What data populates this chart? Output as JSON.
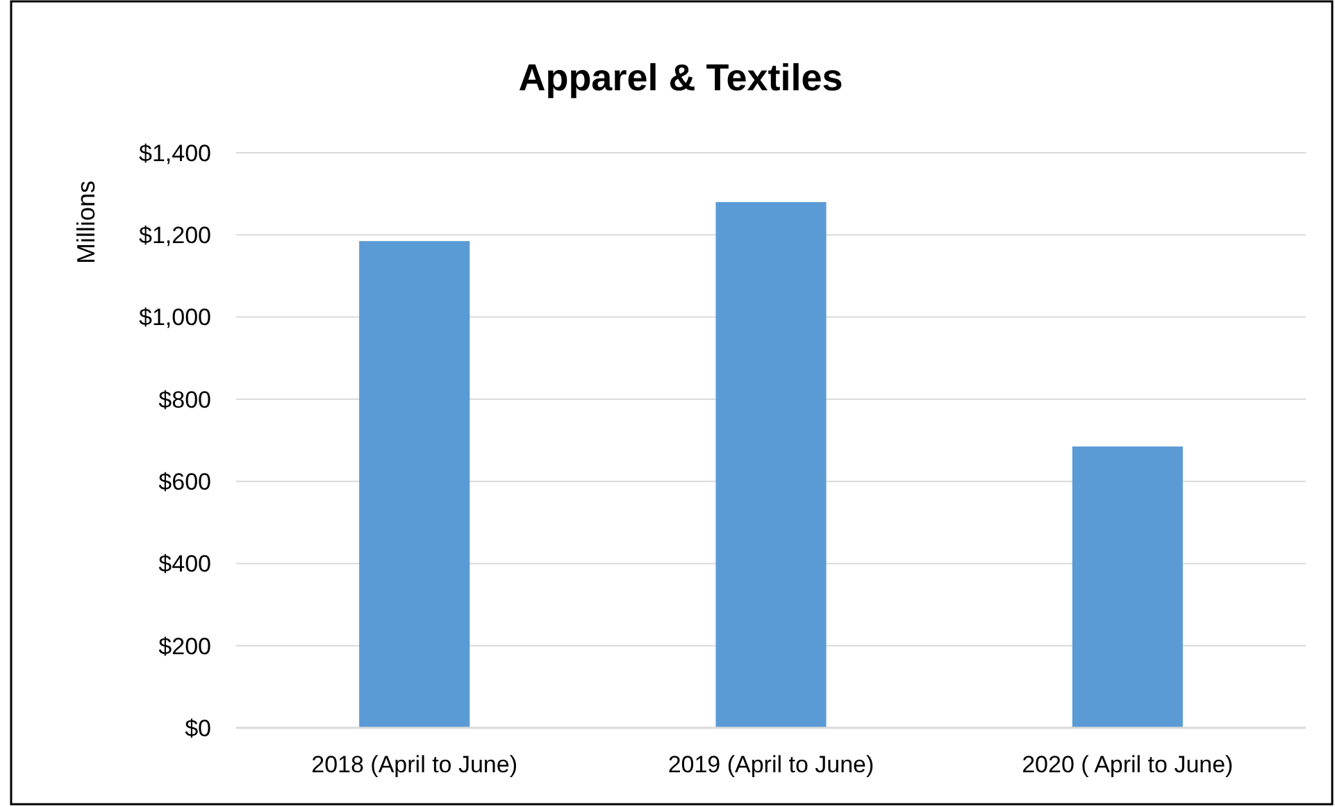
{
  "chart_data": {
    "type": "bar",
    "title": "Apparel & Textiles",
    "ylabel": "Millions",
    "categories": [
      "2018 (April to June)",
      "2019 (April to June)",
      "2020 ( April to June)"
    ],
    "values": [
      1185,
      1280,
      685
    ],
    "color": "#5b9bd5",
    "ylim": [
      0,
      1400
    ],
    "yticks": [
      {
        "value": 0,
        "label": "$0"
      },
      {
        "value": 200,
        "label": "$200"
      },
      {
        "value": 400,
        "label": "$400"
      },
      {
        "value": 600,
        "label": "$600"
      },
      {
        "value": 800,
        "label": "$800"
      },
      {
        "value": 1000,
        "label": "$1,000"
      },
      {
        "value": 1200,
        "label": "$1,200"
      },
      {
        "value": 1400,
        "label": "$1,400"
      }
    ],
    "grid": "y"
  }
}
